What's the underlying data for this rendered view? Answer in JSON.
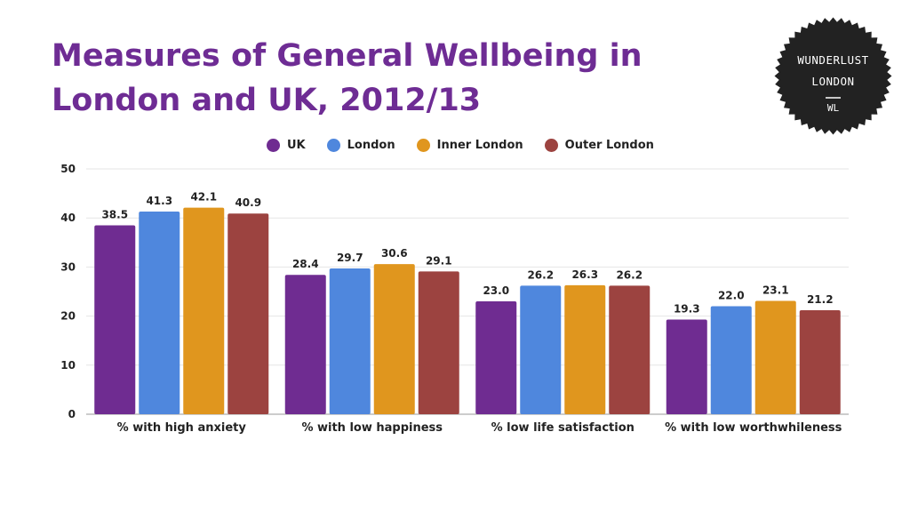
{
  "title": "Measures of General Wellbeing in London and UK, 2012/13",
  "logo": {
    "line1": "WUNDERLUST",
    "line2": "LONDON",
    "mark": "WL",
    "color": "#222222",
    "icon": "badge-logo"
  },
  "chart_data": {
    "type": "bar",
    "title": "Measures of General Wellbeing in London and UK, 2012/13",
    "xlabel": "",
    "ylabel": "",
    "categories": [
      "% with high anxiety",
      "% with low happiness",
      "% low life satisfaction",
      "% with low worthwhileness"
    ],
    "series": [
      {
        "name": "UK",
        "color": "#6f2c91",
        "values": [
          38.5,
          28.4,
          23.0,
          19.3
        ]
      },
      {
        "name": "London",
        "color": "#4f87dd",
        "values": [
          41.3,
          29.7,
          26.2,
          22.0
        ]
      },
      {
        "name": "Inner London",
        "color": "#e0961e",
        "values": [
          42.1,
          30.6,
          26.3,
          23.1
        ]
      },
      {
        "name": "Outer London",
        "color": "#9c4340",
        "values": [
          40.9,
          29.1,
          26.2,
          21.2
        ]
      }
    ],
    "ylim": [
      0,
      50
    ],
    "yticks": [
      0,
      10,
      20,
      30,
      40,
      50
    ],
    "grid": true,
    "legend_position": "top"
  }
}
